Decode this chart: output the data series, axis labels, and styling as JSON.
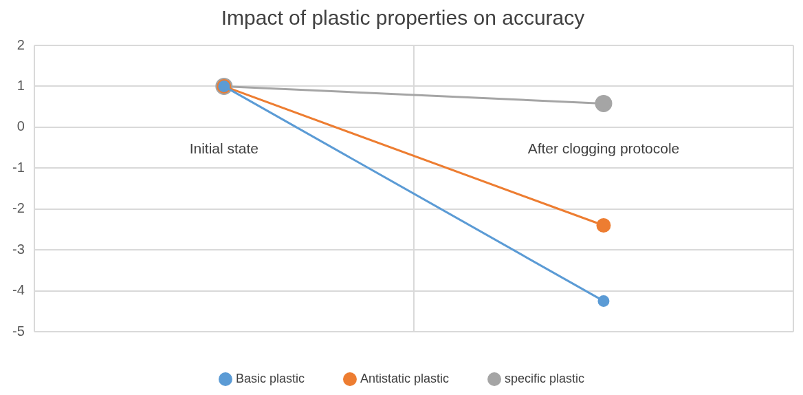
{
  "chart_data": {
    "type": "line",
    "title": "Impact of plastic properties on accuracy",
    "categories": [
      "Initial state",
      "After clogging protocole"
    ],
    "series": [
      {
        "name": "Basic plastic",
        "color": "#5b9bd5",
        "values": [
          1,
          -4.25
        ]
      },
      {
        "name": "Antistatic plastic",
        "color": "#ed7d31",
        "values": [
          1,
          -2.4
        ]
      },
      {
        "name": "specific plastic",
        "color": "#a5a5a5",
        "values": [
          1,
          0.58
        ]
      }
    ],
    "ylim": [
      -5,
      2
    ],
    "yticks": [
      -5,
      -4,
      -3,
      -2,
      -1,
      0,
      1,
      2
    ],
    "grid": true,
    "legend": "bottom",
    "marker": "circle",
    "line_style": "solid"
  }
}
